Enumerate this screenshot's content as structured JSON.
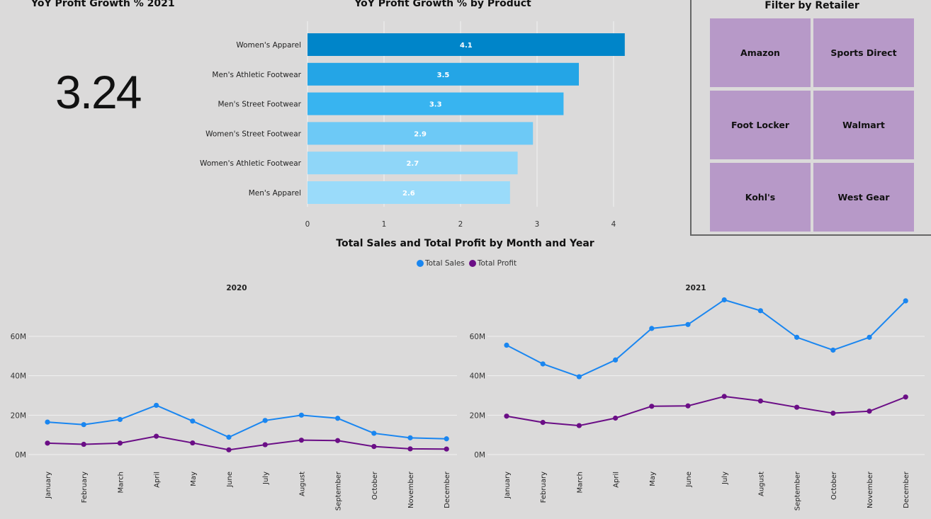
{
  "kpi": {
    "title": "YoY Profit Growth % 2021",
    "value": "3.24"
  },
  "filter": {
    "title": "Filter by Retailer",
    "retailers": [
      "Amazon",
      "Sports Direct",
      "Foot Locker",
      "Walmart",
      "Kohl's",
      "West Gear"
    ]
  },
  "colors": {
    "sales": "#1a86f0",
    "profit": "#6b0e86",
    "tile": "#b799c8",
    "bars": [
      "#0085c9",
      "#24a5e6",
      "#38b4f0",
      "#6dc9f6",
      "#8fd6f8",
      "#9adbfa"
    ]
  },
  "chart_data": [
    {
      "type": "bar",
      "orientation": "horizontal",
      "title": "YoY Profit Growth % by Product",
      "categories": [
        "Women's Apparel",
        "Men's Athletic Footwear",
        "Men's Street Footwear",
        "Women's Street Footwear",
        "Women's Athletic Footwear",
        "Men's Apparel"
      ],
      "values": [
        4.1,
        3.5,
        3.3,
        2.9,
        2.7,
        2.6
      ],
      "data_labels": [
        "4.1",
        "3.5",
        "3.3",
        "2.9",
        "2.7",
        "2.6"
      ],
      "xlim": [
        0,
        4.25
      ],
      "xticks": [
        0,
        1,
        2,
        3,
        4
      ],
      "grid": true
    },
    {
      "type": "line",
      "title": "Total Sales and Total Profit by Month and Year",
      "legend": [
        "Total Sales",
        "Total Profit"
      ],
      "legend_position": "top-center",
      "ylim": [
        0,
        80
      ],
      "yticks": [
        "0M",
        "20M",
        "40M",
        "60M"
      ],
      "ytick_values": [
        0,
        20,
        40,
        60
      ],
      "months": [
        "January",
        "February",
        "March",
        "April",
        "May",
        "June",
        "July",
        "August",
        "September",
        "October",
        "November",
        "December"
      ],
      "panels": [
        {
          "year": "2020",
          "series": [
            {
              "name": "Total Sales",
              "values": [
                16.5,
                15.2,
                17.8,
                25,
                17,
                8.8,
                17.3,
                20,
                18.4,
                10.8,
                8.5,
                8
              ]
            },
            {
              "name": "Total Profit",
              "values": [
                5.8,
                5.2,
                5.8,
                9.3,
                5.9,
                2.4,
                5,
                7.3,
                7.1,
                4.1,
                2.9,
                2.8
              ]
            }
          ]
        },
        {
          "year": "2021",
          "series": [
            {
              "name": "Total Sales",
              "values": [
                55.5,
                46,
                39.5,
                48,
                64,
                66,
                78.5,
                73,
                59.5,
                53,
                59.5,
                78
              ]
            },
            {
              "name": "Total Profit",
              "values": [
                19.5,
                16.3,
                14.7,
                18.5,
                24.5,
                24.7,
                29.5,
                27.2,
                24,
                21,
                22,
                29.2
              ]
            }
          ]
        }
      ]
    }
  ]
}
